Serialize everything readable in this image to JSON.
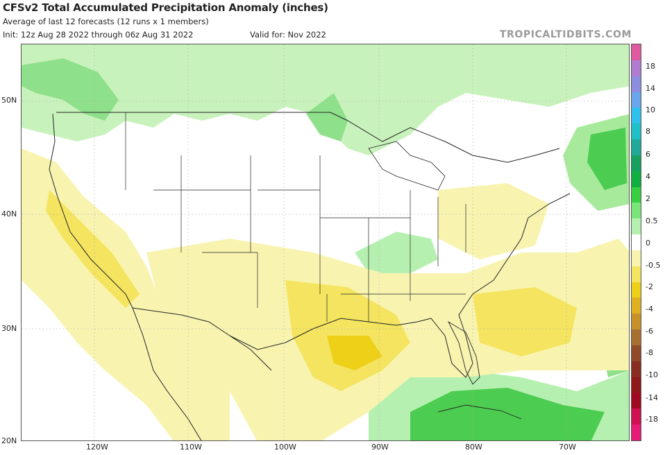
{
  "header": {
    "title": "CFSv2 Total Accumulated Precipitation Anomaly (inches)",
    "subtitle": "Average of last 12 forecasts (12 runs x 1 members)",
    "init": "Init: 12z Aug 28 2022 through 06z Aug 31 2022",
    "valid": "Valid for: Nov 2022",
    "brand": "TROPICALTIDBITS.COM"
  },
  "axes": {
    "lat_labels": [
      "50N",
      "40N",
      "30N",
      "20N"
    ],
    "lon_labels": [
      "120W",
      "110W",
      "100W",
      "90W",
      "80W",
      "70W"
    ]
  },
  "colorbar": {
    "labels": [
      "18",
      "14",
      "10",
      "8",
      "6",
      "4",
      "2",
      "0.5",
      "0",
      "-0.5",
      "-2",
      "-4",
      "-6",
      "-8",
      "-10",
      "-14",
      "-18"
    ],
    "colors": [
      "#e05aa0",
      "#b07cd0",
      "#8c8ce0",
      "#6aa6ec",
      "#30c0ee",
      "#20c0c8",
      "#20a898",
      "#18a060",
      "#10b040",
      "#38d040",
      "#7ae67a",
      "#b6f0b0",
      "#ffffff",
      "#f8f4b0",
      "#f4e460",
      "#eed018",
      "#e0b020",
      "#c89028",
      "#a87030",
      "#904a28",
      "#8a2c20",
      "#901818",
      "#a00a20",
      "#d01050",
      "#e81a78"
    ]
  }
}
